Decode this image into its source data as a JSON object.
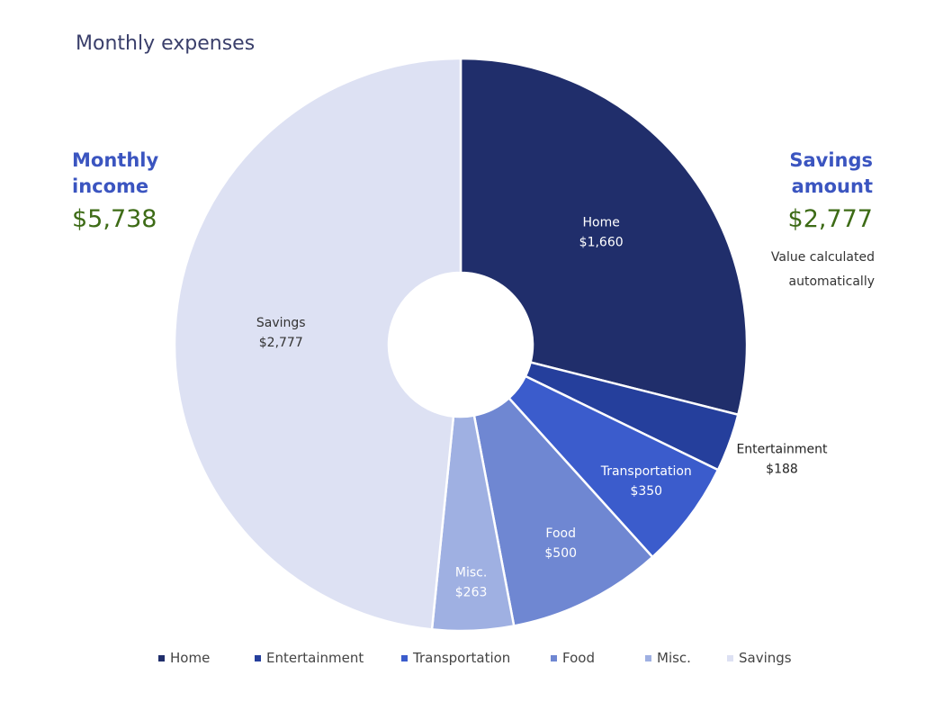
{
  "chart_data": {
    "type": "pie",
    "donut": true,
    "title": "Monthly expenses",
    "categories": [
      "Home",
      "Entertainment",
      "Transportation",
      "Food",
      "Misc.",
      "Savings"
    ],
    "values": [
      1660,
      188,
      350,
      500,
      263,
      2777
    ],
    "data_labels": [
      "$1,660",
      "$188",
      "$350",
      "$500",
      "$263",
      "$2,777"
    ],
    "colors": [
      "#202e6b",
      "#253f9c",
      "#3b5ccc",
      "#6f87d2",
      "#9fb0e2",
      "#dde1f3"
    ],
    "legend_position": "bottom"
  },
  "income": {
    "label_line1": "Monthly",
    "label_line2": "income",
    "value": "$5,738"
  },
  "savings": {
    "label_line1": "Savings",
    "label_line2": "amount",
    "value": "$2,777",
    "note_line1": "Value calculated",
    "note_line2": "automatically"
  },
  "colors": {
    "heading": "#3b55c0",
    "value": "#3d6b16"
  }
}
